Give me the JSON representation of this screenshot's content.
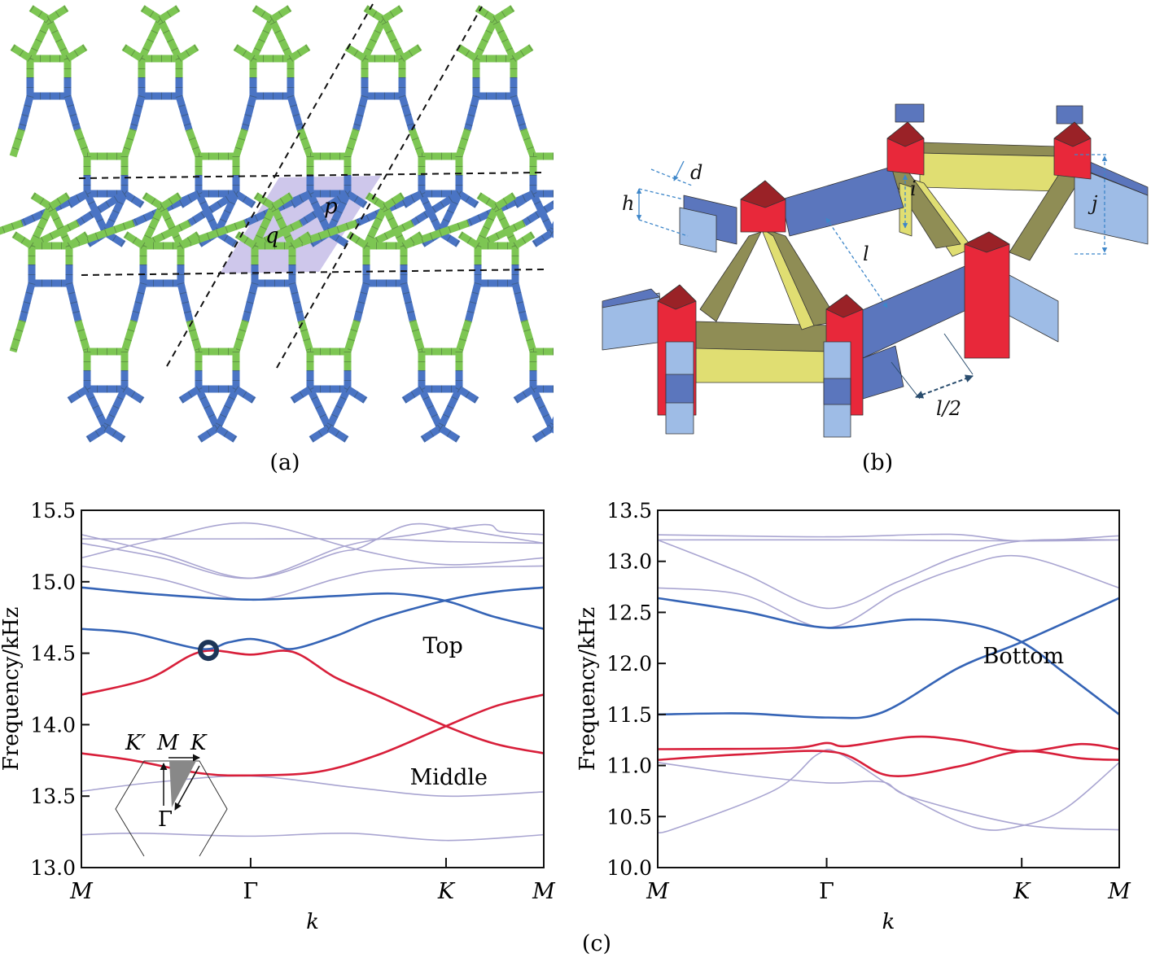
{
  "panels": {
    "a": "(a)",
    "b": "(b)",
    "c": "(c)"
  },
  "panel_a": {
    "labels": {
      "p": "p",
      "q": "q"
    },
    "colors": {
      "green": "#7dc653",
      "blue": "#4a74c4",
      "cell": "#b9afe3"
    }
  },
  "panel_b": {
    "labels": {
      "d": "d",
      "h": "h",
      "i": "i",
      "j": "j",
      "l": "l",
      "half_l": "l/2"
    },
    "colors": {
      "blue": "#5b76bd",
      "light_blue": "#9ebce6",
      "yellow": "#e0de72",
      "olive": "#8f8d55",
      "red": "#e8283a",
      "dark_red": "#9a2227",
      "dim": "#3d86c9"
    }
  },
  "colors": {
    "top": "#3564b6",
    "mid": "#d81f3a",
    "other": "#a9a5d1",
    "marker": "#1d3557"
  },
  "chart_data": [
    {
      "type": "line",
      "title": "",
      "xlabel": "k",
      "ylabel": "Frequency/kHz",
      "ylim": [
        13.0,
        15.5
      ],
      "yticks": [
        "13.0",
        "13.5",
        "14.0",
        "14.5",
        "15.0",
        "15.5"
      ],
      "xlim": [
        0,
        2.366
      ],
      "xticks": [
        {
          "label": "M",
          "k": 0
        },
        {
          "label": "Γ",
          "k": 0.866
        },
        {
          "label": "K",
          "k": 1.866
        },
        {
          "label": "M",
          "k": 2.366
        }
      ],
      "annotations": [
        {
          "text": "Top",
          "k": 1.85,
          "f": 14.5
        },
        {
          "text": "Middle",
          "k": 1.88,
          "f": 13.58
        }
      ],
      "marker": {
        "k": 0.65,
        "f": 14.52
      },
      "inset": {
        "labels": {
          "kprime": "K′",
          "m": "M",
          "k": "K",
          "gamma": "Γ"
        }
      },
      "series": [
        {
          "name": "top-1",
          "group": "top",
          "points": [
            [
              0,
              14.96
            ],
            [
              0.4,
              14.91
            ],
            [
              0.866,
              14.875
            ],
            [
              1.3,
              14.9
            ],
            [
              1.6,
              14.917
            ],
            [
              1.866,
              14.866
            ],
            [
              2.1,
              14.76
            ],
            [
              2.366,
              14.67
            ]
          ]
        },
        {
          "name": "top-2",
          "group": "top",
          "points": [
            [
              0,
              14.67
            ],
            [
              0.26,
              14.64
            ],
            [
              0.61,
              14.53
            ],
            [
              0.75,
              14.575
            ],
            [
              0.866,
              14.6
            ],
            [
              0.98,
              14.57
            ],
            [
              1.08,
              14.53
            ],
            [
              1.3,
              14.62
            ],
            [
              1.52,
              14.74
            ],
            [
              1.866,
              14.87
            ],
            [
              2.12,
              14.93
            ],
            [
              2.366,
              14.96
            ]
          ]
        },
        {
          "name": "middle-1",
          "group": "mid",
          "points": [
            [
              0,
              14.21
            ],
            [
              0.34,
              14.32
            ],
            [
              0.61,
              14.51
            ],
            [
              0.866,
              14.49
            ],
            [
              1.08,
              14.51
            ],
            [
              1.3,
              14.33
            ],
            [
              1.52,
              14.2
            ],
            [
              1.866,
              13.99
            ],
            [
              2.12,
              13.865
            ],
            [
              2.366,
              13.8
            ]
          ]
        },
        {
          "name": "middle-2",
          "group": "mid",
          "points": [
            [
              0,
              13.8
            ],
            [
              0.265,
              13.75
            ],
            [
              0.61,
              13.66
            ],
            [
              0.866,
              13.645
            ],
            [
              1.21,
              13.67
            ],
            [
              1.52,
              13.79
            ],
            [
              1.866,
              13.99
            ],
            [
              2.12,
              14.13
            ],
            [
              2.366,
              14.21
            ]
          ]
        },
        {
          "name": "other-1",
          "group": "other",
          "points": [
            [
              0,
              15.3
            ],
            [
              0.866,
              15.3
            ],
            [
              1.5,
              15.3
            ],
            [
              1.9,
              15.28
            ],
            [
              2.366,
              15.27
            ]
          ]
        },
        {
          "name": "other-2",
          "group": "other",
          "points": [
            [
              0,
              15.33
            ],
            [
              0.4,
              15.2
            ],
            [
              0.866,
              15.025
            ],
            [
              1.3,
              15.2
            ],
            [
              1.43,
              15.24
            ],
            [
              1.68,
              15.4
            ],
            [
              1.95,
              15.36
            ],
            [
              2.366,
              15.27
            ]
          ]
        },
        {
          "name": "other-3",
          "group": "other",
          "points": [
            [
              0,
              15.27
            ],
            [
              0.4,
              15.17
            ],
            [
              0.866,
              15.025
            ],
            [
              1.35,
              15.25
            ],
            [
              1.7,
              15.33
            ],
            [
              2.06,
              15.4
            ],
            [
              2.15,
              15.35
            ],
            [
              2.366,
              15.33
            ]
          ]
        },
        {
          "name": "other-4",
          "group": "other",
          "points": [
            [
              0,
              15.167
            ],
            [
              0.4,
              15.3
            ],
            [
              0.866,
              15.41
            ],
            [
              1.43,
              15.22
            ],
            [
              1.866,
              15.12
            ],
            [
              2.366,
              15.167
            ]
          ]
        },
        {
          "name": "other-5",
          "group": "other",
          "points": [
            [
              0,
              15.11
            ],
            [
              0.4,
              15.02
            ],
            [
              0.866,
              14.873
            ],
            [
              1.3,
              15.02
            ],
            [
              1.52,
              15.08
            ],
            [
              1.866,
              15.1
            ],
            [
              2.366,
              15.11
            ]
          ]
        },
        {
          "name": "other-6",
          "group": "other",
          "points": [
            [
              0,
              13.534
            ],
            [
              0.4,
              13.6
            ],
            [
              0.866,
              13.64
            ],
            [
              1.4,
              13.56
            ],
            [
              1.866,
              13.5
            ],
            [
              2.366,
              13.53
            ]
          ]
        },
        {
          "name": "other-7",
          "group": "other",
          "points": [
            [
              0,
              13.23
            ],
            [
              0.3,
              13.24
            ],
            [
              0.866,
              13.22
            ],
            [
              1.37,
              13.24
            ],
            [
              1.866,
              13.19
            ],
            [
              2.366,
              13.23
            ]
          ]
        }
      ]
    },
    {
      "type": "line",
      "title": "",
      "xlabel": "k",
      "ylabel": "Frequency/kHz",
      "ylim": [
        10.0,
        13.5
      ],
      "yticks": [
        "10.0",
        "10.5",
        "11.0",
        "11.5",
        "12.0",
        "12.5",
        "13.0",
        "13.5"
      ],
      "xlim": [
        0,
        2.366
      ],
      "xticks": [
        {
          "label": "M",
          "k": 0
        },
        {
          "label": "Γ",
          "k": 0.866
        },
        {
          "label": "K",
          "k": 1.866
        },
        {
          "label": "M",
          "k": 2.366
        }
      ],
      "annotations": [
        {
          "text": "Bottom",
          "k": 1.875,
          "f": 12.0
        }
      ],
      "series": [
        {
          "name": "bottom-1",
          "group": "top",
          "points": [
            [
              0,
              12.64
            ],
            [
              0.44,
              12.51
            ],
            [
              0.866,
              12.35
            ],
            [
              1.3,
              12.43
            ],
            [
              1.62,
              12.38
            ],
            [
              1.866,
              12.21
            ],
            [
              2.09,
              11.9
            ],
            [
              2.366,
              11.5
            ]
          ]
        },
        {
          "name": "bottom-2",
          "group": "top",
          "points": [
            [
              0,
              11.5
            ],
            [
              0.44,
              11.51
            ],
            [
              0.866,
              11.47
            ],
            [
              1.15,
              11.52
            ],
            [
              1.54,
              11.955
            ],
            [
              1.866,
              12.21
            ],
            [
              2.366,
              12.64
            ]
          ]
        },
        {
          "name": "middle-1",
          "group": "mid",
          "points": [
            [
              0,
              11.16
            ],
            [
              0.67,
              11.17
            ],
            [
              0.866,
              11.22
            ],
            [
              0.97,
              11.19
            ],
            [
              1.3,
              11.28
            ],
            [
              1.54,
              11.25
            ],
            [
              1.866,
              11.14
            ],
            [
              2.17,
              11.21
            ],
            [
              2.366,
              11.16
            ]
          ]
        },
        {
          "name": "middle-2",
          "group": "mid",
          "points": [
            [
              0,
              11.055
            ],
            [
              0.44,
              11.11
            ],
            [
              0.91,
              11.13
            ],
            [
              1.19,
              10.9
            ],
            [
              1.54,
              10.99
            ],
            [
              1.866,
              11.14
            ],
            [
              2.17,
              11.07
            ],
            [
              2.366,
              11.055
            ]
          ]
        },
        {
          "name": "other-1",
          "group": "other",
          "points": [
            [
              0,
              13.26
            ],
            [
              0.866,
              13.24
            ],
            [
              1.5,
              13.265
            ],
            [
              1.866,
              13.2
            ],
            [
              2.366,
              13.25
            ]
          ]
        },
        {
          "name": "other-2",
          "group": "other",
          "points": [
            [
              0,
              13.21
            ],
            [
              1.0,
              13.21
            ],
            [
              1.866,
              13.2
            ],
            [
              2.366,
              13.21
            ]
          ]
        },
        {
          "name": "other-3",
          "group": "other",
          "points": [
            [
              0,
              13.21
            ],
            [
              0.44,
              12.88
            ],
            [
              0.866,
              12.54
            ],
            [
              1.23,
              12.8
            ],
            [
              1.54,
              13.05
            ],
            [
              1.866,
              13.2
            ],
            [
              2.366,
              13.21
            ]
          ]
        },
        {
          "name": "other-4",
          "group": "other",
          "points": [
            [
              0,
              12.74
            ],
            [
              0.44,
              12.67
            ],
            [
              0.866,
              12.35
            ],
            [
              1.23,
              12.7
            ],
            [
              1.54,
              12.93
            ],
            [
              1.866,
              13.05
            ],
            [
              2.366,
              12.74
            ]
          ]
        },
        {
          "name": "other-5",
          "group": "other",
          "points": [
            [
              0,
              11.03
            ],
            [
              0.44,
              10.91
            ],
            [
              0.866,
              10.83
            ],
            [
              1.15,
              10.84
            ],
            [
              1.3,
              10.69
            ],
            [
              1.866,
              10.42
            ],
            [
              2.366,
              10.37
            ]
          ]
        },
        {
          "name": "other-6",
          "group": "other",
          "points": [
            [
              0,
              10.37
            ],
            [
              0.07,
              10.37
            ],
            [
              0.6,
              10.76
            ],
            [
              0.82,
              11.11
            ],
            [
              0.94,
              11.11
            ],
            [
              1.27,
              10.71
            ],
            [
              1.63,
              10.39
            ],
            [
              1.866,
              10.41
            ],
            [
              2.09,
              10.58
            ],
            [
              2.366,
              11.03
            ]
          ]
        }
      ]
    }
  ]
}
